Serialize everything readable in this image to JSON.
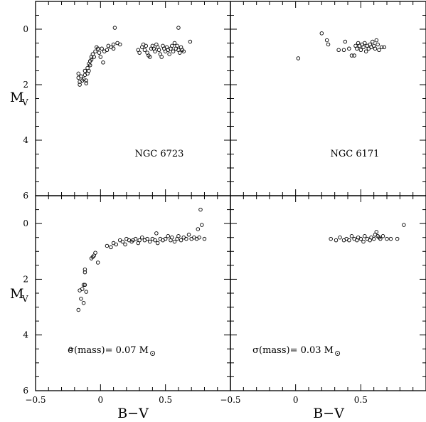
{
  "figure": {
    "x_axis_label": "B−V",
    "y_axis_label_main": "M",
    "y_axis_label_sub": "V"
  },
  "chart_data": [
    {
      "type": "scatter",
      "panel": "top-left",
      "annotation": "NGC 6723",
      "xlim": [
        -0.5,
        1.0
      ],
      "ylim": [
        6,
        -1
      ],
      "x_ticks": [
        -0.5,
        0,
        0.5
      ],
      "y_ticks": [
        0,
        2,
        4,
        6
      ],
      "series": [
        {
          "marker": "open-circle",
          "points": [
            [
              -0.17,
              1.6
            ],
            [
              -0.17,
              1.75
            ],
            [
              -0.16,
              1.9
            ],
            [
              -0.16,
              2.0
            ],
            [
              -0.15,
              1.7
            ],
            [
              -0.14,
              1.85
            ],
            [
              -0.13,
              1.8
            ],
            [
              -0.12,
              1.5
            ],
            [
              -0.12,
              1.65
            ],
            [
              -0.11,
              1.85
            ],
            [
              -0.11,
              1.95
            ],
            [
              -0.1,
              1.4
            ],
            [
              -0.1,
              1.6
            ],
            [
              -0.09,
              1.25
            ],
            [
              -0.09,
              1.5
            ],
            [
              -0.08,
              1.15
            ],
            [
              -0.08,
              1.3
            ],
            [
              -0.07,
              1.0
            ],
            [
              -0.07,
              1.1
            ],
            [
              -0.06,
              0.9
            ],
            [
              -0.05,
              1.0
            ],
            [
              -0.04,
              0.8
            ],
            [
              -0.03,
              0.65
            ],
            [
              -0.02,
              0.7
            ],
            [
              -0.01,
              0.85
            ],
            [
              0.0,
              1.0
            ],
            [
              0.01,
              0.7
            ],
            [
              0.02,
              1.2
            ],
            [
              0.03,
              0.8
            ],
            [
              0.05,
              0.75
            ],
            [
              0.06,
              0.6
            ],
            [
              0.08,
              0.65
            ],
            [
              0.1,
              0.55
            ],
            [
              0.1,
              0.7
            ],
            [
              0.11,
              -0.05
            ],
            [
              0.13,
              0.5
            ],
            [
              0.15,
              0.55
            ],
            [
              0.29,
              0.75
            ],
            [
              0.3,
              0.85
            ],
            [
              0.32,
              0.65
            ],
            [
              0.33,
              0.55
            ],
            [
              0.34,
              0.75
            ],
            [
              0.35,
              0.6
            ],
            [
              0.36,
              0.85
            ],
            [
              0.37,
              0.95
            ],
            [
              0.38,
              1.0
            ],
            [
              0.39,
              0.7
            ],
            [
              0.4,
              0.6
            ],
            [
              0.41,
              0.7
            ],
            [
              0.42,
              0.8
            ],
            [
              0.43,
              0.55
            ],
            [
              0.44,
              0.65
            ],
            [
              0.45,
              0.75
            ],
            [
              0.46,
              0.9
            ],
            [
              0.47,
              1.0
            ],
            [
              0.48,
              0.6
            ],
            [
              0.49,
              0.7
            ],
            [
              0.5,
              0.8
            ],
            [
              0.51,
              0.65
            ],
            [
              0.52,
              0.75
            ],
            [
              0.53,
              0.9
            ],
            [
              0.54,
              0.7
            ],
            [
              0.55,
              0.6
            ],
            [
              0.56,
              0.8
            ],
            [
              0.57,
              0.5
            ],
            [
              0.58,
              0.7
            ],
            [
              0.59,
              0.6
            ],
            [
              0.6,
              0.75
            ],
            [
              0.61,
              0.85
            ],
            [
              0.62,
              0.65
            ],
            [
              0.63,
              0.75
            ],
            [
              0.64,
              0.8
            ],
            [
              0.6,
              -0.05
            ],
            [
              0.69,
              0.45
            ]
          ]
        }
      ]
    },
    {
      "type": "scatter",
      "panel": "top-right",
      "annotation": "NGC 6171",
      "xlim": [
        -0.5,
        1.0
      ],
      "ylim": [
        6,
        -1
      ],
      "x_ticks": [
        -0.5,
        0,
        0.5
      ],
      "y_ticks": [
        0,
        2,
        4,
        6
      ],
      "series": [
        {
          "marker": "open-circle",
          "points": [
            [
              0.02,
              1.05
            ],
            [
              0.2,
              0.15
            ],
            [
              0.24,
              0.4
            ],
            [
              0.25,
              0.55
            ],
            [
              0.33,
              0.75
            ],
            [
              0.37,
              0.75
            ],
            [
              0.38,
              0.45
            ],
            [
              0.41,
              0.7
            ],
            [
              0.43,
              0.95
            ],
            [
              0.45,
              0.95
            ],
            [
              0.46,
              0.6
            ],
            [
              0.47,
              0.7
            ],
            [
              0.48,
              0.5
            ],
            [
              0.49,
              0.6
            ],
            [
              0.5,
              0.75
            ],
            [
              0.51,
              0.55
            ],
            [
              0.52,
              0.65
            ],
            [
              0.53,
              0.5
            ],
            [
              0.54,
              0.8
            ],
            [
              0.55,
              0.6
            ],
            [
              0.56,
              0.7
            ],
            [
              0.57,
              0.55
            ],
            [
              0.58,
              0.65
            ],
            [
              0.59,
              0.45
            ],
            [
              0.6,
              0.6
            ],
            [
              0.61,
              0.7
            ],
            [
              0.62,
              0.4
            ],
            [
              0.63,
              0.55
            ],
            [
              0.64,
              0.75
            ],
            [
              0.66,
              0.65
            ],
            [
              0.68,
              0.65
            ]
          ]
        }
      ]
    },
    {
      "type": "scatter",
      "panel": "bottom-left",
      "annotation_prefix": "σ(mass)= 0.07 M",
      "annotation_symbol": "⊙",
      "xlim": [
        -0.5,
        1.0
      ],
      "ylim": [
        6,
        -1
      ],
      "x_ticks": [
        -0.5,
        0,
        0.5
      ],
      "y_ticks": [
        0,
        2,
        4,
        6
      ],
      "series": [
        {
          "marker": "open-circle",
          "points": [
            [
              -0.23,
              4.5
            ],
            [
              -0.17,
              3.1
            ],
            [
              -0.16,
              2.4
            ],
            [
              -0.15,
              2.7
            ],
            [
              -0.14,
              2.35
            ],
            [
              -0.13,
              2.85
            ],
            [
              -0.13,
              2.2
            ],
            [
              -0.12,
              2.2
            ],
            [
              -0.12,
              1.75
            ],
            [
              -0.12,
              1.65
            ],
            [
              -0.11,
              2.45
            ],
            [
              -0.07,
              1.25
            ],
            [
              -0.06,
              1.2
            ],
            [
              -0.05,
              1.15
            ],
            [
              -0.04,
              1.05
            ],
            [
              -0.02,
              1.4
            ],
            [
              0.05,
              0.8
            ],
            [
              0.08,
              0.85
            ],
            [
              0.1,
              0.7
            ],
            [
              0.12,
              0.75
            ],
            [
              0.15,
              0.6
            ],
            [
              0.17,
              0.65
            ],
            [
              0.19,
              0.75
            ],
            [
              0.2,
              0.55
            ],
            [
              0.22,
              0.6
            ],
            [
              0.24,
              0.65
            ],
            [
              0.25,
              0.6
            ],
            [
              0.27,
              0.55
            ],
            [
              0.29,
              0.7
            ],
            [
              0.3,
              0.6
            ],
            [
              0.32,
              0.5
            ],
            [
              0.34,
              0.6
            ],
            [
              0.36,
              0.55
            ],
            [
              0.38,
              0.65
            ],
            [
              0.4,
              0.55
            ],
            [
              0.42,
              0.6
            ],
            [
              0.43,
              0.35
            ],
            [
              0.44,
              0.7
            ],
            [
              0.46,
              0.55
            ],
            [
              0.48,
              0.6
            ],
            [
              0.5,
              0.55
            ],
            [
              0.52,
              0.45
            ],
            [
              0.54,
              0.6
            ],
            [
              0.55,
              0.5
            ],
            [
              0.57,
              0.65
            ],
            [
              0.59,
              0.55
            ],
            [
              0.6,
              0.45
            ],
            [
              0.62,
              0.6
            ],
            [
              0.64,
              0.5
            ],
            [
              0.66,
              0.55
            ],
            [
              0.68,
              0.4
            ],
            [
              0.7,
              0.55
            ],
            [
              0.72,
              0.5
            ],
            [
              0.74,
              0.55
            ],
            [
              0.76,
              0.5
            ],
            [
              0.78,
              0.05
            ],
            [
              0.77,
              -0.5
            ],
            [
              0.75,
              0.2
            ],
            [
              0.8,
              0.55
            ]
          ]
        }
      ]
    },
    {
      "type": "scatter",
      "panel": "bottom-right",
      "annotation_prefix": "σ(mass)= 0.03 M",
      "annotation_symbol": "⊙",
      "xlim": [
        -0.5,
        1.0
      ],
      "ylim": [
        6,
        -1
      ],
      "x_ticks": [
        -0.5,
        0,
        0.5
      ],
      "y_ticks": [
        0,
        2,
        4,
        6
      ],
      "series": [
        {
          "marker": "open-circle",
          "points": [
            [
              0.27,
              0.55
            ],
            [
              0.31,
              0.6
            ],
            [
              0.34,
              0.5
            ],
            [
              0.37,
              0.6
            ],
            [
              0.39,
              0.55
            ],
            [
              0.41,
              0.6
            ],
            [
              0.43,
              0.45
            ],
            [
              0.45,
              0.55
            ],
            [
              0.47,
              0.6
            ],
            [
              0.48,
              0.5
            ],
            [
              0.5,
              0.55
            ],
            [
              0.52,
              0.65
            ],
            [
              0.53,
              0.45
            ],
            [
              0.55,
              0.55
            ],
            [
              0.57,
              0.6
            ],
            [
              0.58,
              0.5
            ],
            [
              0.6,
              0.55
            ],
            [
              0.61,
              0.4
            ],
            [
              0.62,
              0.3
            ],
            [
              0.63,
              0.45
            ],
            [
              0.64,
              0.5
            ],
            [
              0.65,
              0.55
            ],
            [
              0.67,
              0.45
            ],
            [
              0.7,
              0.55
            ],
            [
              0.73,
              0.55
            ],
            [
              0.78,
              0.55
            ],
            [
              0.83,
              0.05
            ]
          ]
        }
      ]
    }
  ]
}
